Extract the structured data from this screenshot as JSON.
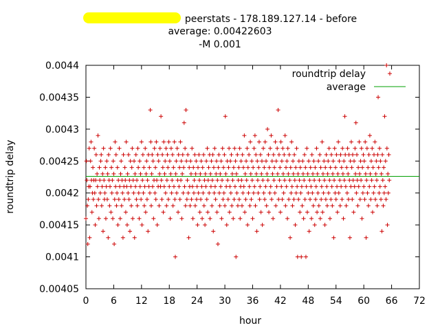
{
  "title": {
    "line1": "peerstats - 178.189.127.14 - before",
    "line2": "average: 0.00422603",
    "line3": "-M 0.001"
  },
  "colors": {
    "points": "#cc0000",
    "average": "#00a000",
    "redaction": "#ffff00"
  },
  "chart_data": {
    "type": "scatter",
    "xlabel": "hour",
    "ylabel": "roundtrip delay",
    "xlim": [
      0,
      72
    ],
    "ylim": [
      0.00405,
      0.0044
    ],
    "x_ticks": [
      0,
      6,
      12,
      18,
      24,
      30,
      36,
      42,
      48,
      54,
      60,
      66,
      72
    ],
    "y_ticks": [
      "0.00405",
      "0.0041",
      "0.00415",
      "0.0042",
      "0.00425",
      "0.0043",
      "0.00435",
      "0.0044"
    ],
    "grid": false,
    "legend_position": "top-right",
    "series": [
      {
        "name": "roundtrip delay",
        "marker": "plus",
        "x_start": 0,
        "x_step": 0.1,
        "values": [
          0.00416,
          0.00425,
          0.00422,
          0.00418,
          0.00412,
          0.00419,
          0.00421,
          0.00427,
          0.00413,
          0.00421,
          0.00425,
          0.00428,
          0.00422,
          0.00417,
          0.0042,
          0.00424,
          0.00419,
          0.00422,
          0.00427,
          0.0042,
          0.00415,
          0.00422,
          0.00426,
          0.00418,
          0.00423,
          0.00421,
          0.00429,
          0.00419,
          0.00416,
          0.00424,
          0.00422,
          0.0042,
          0.00425,
          0.00426,
          0.00418,
          0.00421,
          0.00423,
          0.00414,
          0.00427,
          0.00422,
          0.00419,
          0.0042,
          0.00424,
          0.00416,
          0.00421,
          0.00425,
          0.00419,
          0.00423,
          0.00413,
          0.00426,
          0.00422,
          0.00418,
          0.00421,
          0.00427,
          0.00417,
          0.00424,
          0.0042,
          0.00422,
          0.00416,
          0.00425,
          0.00423,
          0.00412,
          0.00419,
          0.00428,
          0.00421,
          0.00426,
          0.00418,
          0.0042,
          0.00424,
          0.00415,
          0.00422,
          0.00419,
          0.00427,
          0.00421,
          0.00416,
          0.00423,
          0.00425,
          0.00418,
          0.00422,
          0.0042,
          0.00413,
          0.00426,
          0.00421,
          0.00419,
          0.00424,
          0.00422,
          0.00417,
          0.00428,
          0.00421,
          0.00415,
          0.00423,
          0.0042,
          0.00426,
          0.00419,
          0.00422,
          0.00414,
          0.00425,
          0.00421,
          0.00418,
          0.00424,
          0.00427,
          0.00416,
          0.00422,
          0.0042,
          0.00425,
          0.00413,
          0.00423,
          0.00421,
          0.00426,
          0.00419,
          0.00422,
          0.00418,
          0.00427,
          0.00424,
          0.0042,
          0.00416,
          0.00425,
          0.00421,
          0.00423,
          0.00419,
          0.00428,
          0.00415,
          0.00422,
          0.00426,
          0.0042,
          0.00424,
          0.00418,
          0.00421,
          0.00427,
          0.00417,
          0.00423,
          0.00425,
          0.00419,
          0.00422,
          0.00414,
          0.00426,
          0.00421,
          0.00424,
          0.0042,
          0.00433,
          0.00428,
          0.00418,
          0.00423,
          0.00426,
          0.00421,
          0.00425,
          0.00416,
          0.00422,
          0.00427,
          0.0042,
          0.00424,
          0.00419,
          0.00428,
          0.00422,
          0.00415,
          0.00426,
          0.00421,
          0.00425,
          0.00418,
          0.00423,
          0.00427,
          0.00421,
          0.00432,
          0.00422,
          0.00419,
          0.00426,
          0.00424,
          0.00417,
          0.00428,
          0.00421,
          0.00423,
          0.00425,
          0.0042,
          0.00427,
          0.00418,
          0.00422,
          0.00426,
          0.00424,
          0.00419,
          0.00428,
          0.00421,
          0.00425,
          0.00416,
          0.00423,
          0.00427,
          0.0042,
          0.00422,
          0.00426,
          0.00418,
          0.00424,
          0.00421,
          0.00428,
          0.00419,
          0.0041,
          0.00423,
          0.00425,
          0.0042,
          0.00427,
          0.00422,
          0.00417,
          0.00426,
          0.00421,
          0.00424,
          0.00419,
          0.00428,
          0.00422,
          0.00425,
          0.00416,
          0.00423,
          0.00426,
          0.0042,
          0.00424,
          0.00431,
          0.00421,
          0.00427,
          0.00418,
          0.00433,
          0.00425,
          0.00419,
          0.00422,
          0.00426,
          0.0042,
          0.00413,
          0.00424,
          0.00421,
          0.00418,
          0.00425,
          0.00423,
          0.00419,
          0.00427,
          0.00421,
          0.00416,
          0.00424,
          0.0042,
          0.00422,
          0.00426,
          0.00418,
          0.00423,
          0.00425,
          0.00419,
          0.00421,
          0.00415,
          0.00424,
          0.0042,
          0.00426,
          0.00422,
          0.00417,
          0.00423,
          0.00419,
          0.00425,
          0.00421,
          0.00416,
          0.00424,
          0.0042,
          0.00426,
          0.00418,
          0.00422,
          0.00415,
          0.00423,
          0.00421,
          0.00425,
          0.00419,
          0.00427,
          0.00417,
          0.00422,
          0.00424,
          0.0042,
          0.00426,
          0.00416,
          0.00423,
          0.00421,
          0.00425,
          0.00418,
          0.00422,
          0.00426,
          0.00414,
          0.00424,
          0.0042,
          0.00427,
          0.00421,
          0.00419,
          0.00423,
          0.00425,
          0.00417,
          0.00422,
          0.00412,
          0.00424,
          0.00426,
          0.0042,
          0.00418,
          0.00423,
          0.00421,
          0.00425,
          0.00416,
          0.00422,
          0.00427,
          0.00419,
          0.00424,
          0.0042,
          0.00426,
          0.00418,
          0.00432,
          0.00423,
          0.00421,
          0.00415,
          0.00425,
          0.00422,
          0.00419,
          0.00424,
          0.00427,
          0.00417,
          0.00421,
          0.00425,
          0.0042,
          0.00426,
          0.00418,
          0.00423,
          0.00422,
          0.00416,
          0.00424,
          0.00419,
          0.00427,
          0.00421,
          0.00425,
          0.0041,
          0.00423,
          0.0042,
          0.00426,
          0.00418,
          0.00422,
          0.00424,
          0.00419,
          0.00427,
          0.00416,
          0.00421,
          0.00425,
          0.00422,
          0.00418,
          0.00426,
          0.0042,
          0.00424,
          0.00421,
          0.00429,
          0.00417,
          0.00423,
          0.00419,
          0.00425,
          0.00422,
          0.00427,
          0.00415,
          0.00424,
          0.0042,
          0.00426,
          0.00421,
          0.00418,
          0.00428,
          0.00423,
          0.00419,
          0.00425,
          0.00422,
          0.00416,
          0.00424,
          0.0042,
          0.00427,
          0.00421,
          0.00429,
          0.00418,
          0.00426,
          0.00423,
          0.00414,
          0.00425,
          0.00422,
          0.0042,
          0.00424,
          0.00428,
          0.00419,
          0.00421,
          0.00426,
          0.00417,
          0.00423,
          0.00425,
          0.00415,
          0.00422,
          0.00427,
          0.0042,
          0.00424,
          0.00419,
          0.00428,
          0.00421,
          0.00425,
          0.00418,
          0.00423,
          0.0043,
          0.00422,
          0.00426,
          0.00417,
          0.00424,
          0.0042,
          0.00427,
          0.00421,
          0.00429,
          0.00419,
          0.00425,
          0.00423,
          0.00416,
          0.00426,
          0.00422,
          0.00424,
          0.0042,
          0.00428,
          0.00418,
          0.00425,
          0.00421,
          0.00427,
          0.00423,
          0.00433,
          0.00419,
          0.00426,
          0.00422,
          0.00424,
          0.00417,
          0.00428,
          0.00421,
          0.00425,
          0.00419,
          0.00427,
          0.00423,
          0.0042,
          0.00426,
          0.00422,
          0.00429,
          0.00418,
          0.00424,
          0.00421,
          0.00425,
          0.00416,
          0.00427,
          0.00423,
          0.00419,
          0.00426,
          0.00422,
          0.00413,
          0.00424,
          0.0042,
          0.00428,
          0.00421,
          0.00418,
          0.00425,
          0.00423,
          0.00419,
          0.00426,
          0.00422,
          0.00415,
          0.00424,
          0.0042,
          0.00427,
          0.00421,
          0.0041,
          0.00423,
          0.00419,
          0.00425,
          0.00422,
          0.00417,
          0.00424,
          0.0042,
          0.0041,
          0.00421,
          0.00418,
          0.00425,
          0.00423,
          0.00416,
          0.00422,
          0.00426,
          0.00419,
          0.00424,
          0.0041,
          0.00421,
          0.00427,
          0.00417,
          0.00423,
          0.0042,
          0.00425,
          0.00414,
          0.00422,
          0.00419,
          0.00424,
          0.00421,
          0.00416,
          0.00426,
          0.0042,
          0.00423,
          0.00418,
          0.00425,
          0.00422,
          0.00415,
          0.00424,
          0.00419,
          0.00421,
          0.00427,
          0.00417,
          0.00423,
          0.0042,
          0.00425,
          0.00418,
          0.00422,
          0.00426,
          0.00416,
          0.00424,
          0.00419,
          0.00421,
          0.00428,
          0.00417,
          0.00423,
          0.0042,
          0.00425,
          0.00422,
          0.00415,
          0.00424,
          0.00419,
          0.00426,
          0.00421,
          0.00418,
          0.00423,
          0.00425,
          0.0042,
          0.00427,
          0.00422,
          0.00416,
          0.00424,
          0.00419,
          0.00426,
          0.00421,
          0.00418,
          0.00423,
          0.00425,
          0.00413,
          0.00422,
          0.00427,
          0.0042,
          0.00424,
          0.00419,
          0.00426,
          0.00421,
          0.00417,
          0.00423,
          0.00428,
          0.0042,
          0.00425,
          0.00422,
          0.00418,
          0.00426,
          0.00421,
          0.00424,
          0.00419,
          0.00427,
          0.00423,
          0.00416,
          0.00425,
          0.00422,
          0.00432,
          0.00426,
          0.00421,
          0.00418,
          0.00424,
          0.0042,
          0.00427,
          0.00423,
          0.00419,
          0.00426,
          0.00422,
          0.00413,
          0.00425,
          0.00421,
          0.00428,
          0.00424,
          0.00419,
          0.00426,
          0.00422,
          0.00417,
          0.00425,
          0.00421,
          0.00427,
          0.00423,
          0.00431,
          0.0042,
          0.00426,
          0.00422,
          0.00418,
          0.00424,
          0.00421,
          0.00428,
          0.00423,
          0.00419,
          0.00425,
          0.00422,
          0.00427,
          0.00416,
          0.00424,
          0.0042,
          0.00426,
          0.00421,
          0.00425,
          0.00419,
          0.00428,
          0.00423,
          0.00413,
          0.00422,
          0.00427,
          0.0042,
          0.00424,
          0.00418,
          0.00426,
          0.00421,
          0.00429,
          0.00423,
          0.00419,
          0.00425,
          0.00422,
          0.00427,
          0.00417,
          0.00424,
          0.0042,
          0.00426,
          0.00421,
          0.00428,
          0.00419,
          0.00423,
          0.00425,
          0.00422,
          0.00418,
          0.00426,
          0.00435,
          0.00424,
          0.0042,
          0.00427,
          0.00421,
          0.00425,
          0.00419,
          0.00423,
          0.00414,
          0.00426,
          0.00422,
          0.00418,
          0.00424,
          0.0042,
          0.00432,
          0.00421,
          0.00425,
          0.00419,
          0.0044,
          0.00427,
          0.00415,
          0.00423,
          0.0042,
          0.00426,
          0.00422
        ]
      },
      {
        "name": "average",
        "marker": "line",
        "value": 0.00422603
      }
    ]
  }
}
